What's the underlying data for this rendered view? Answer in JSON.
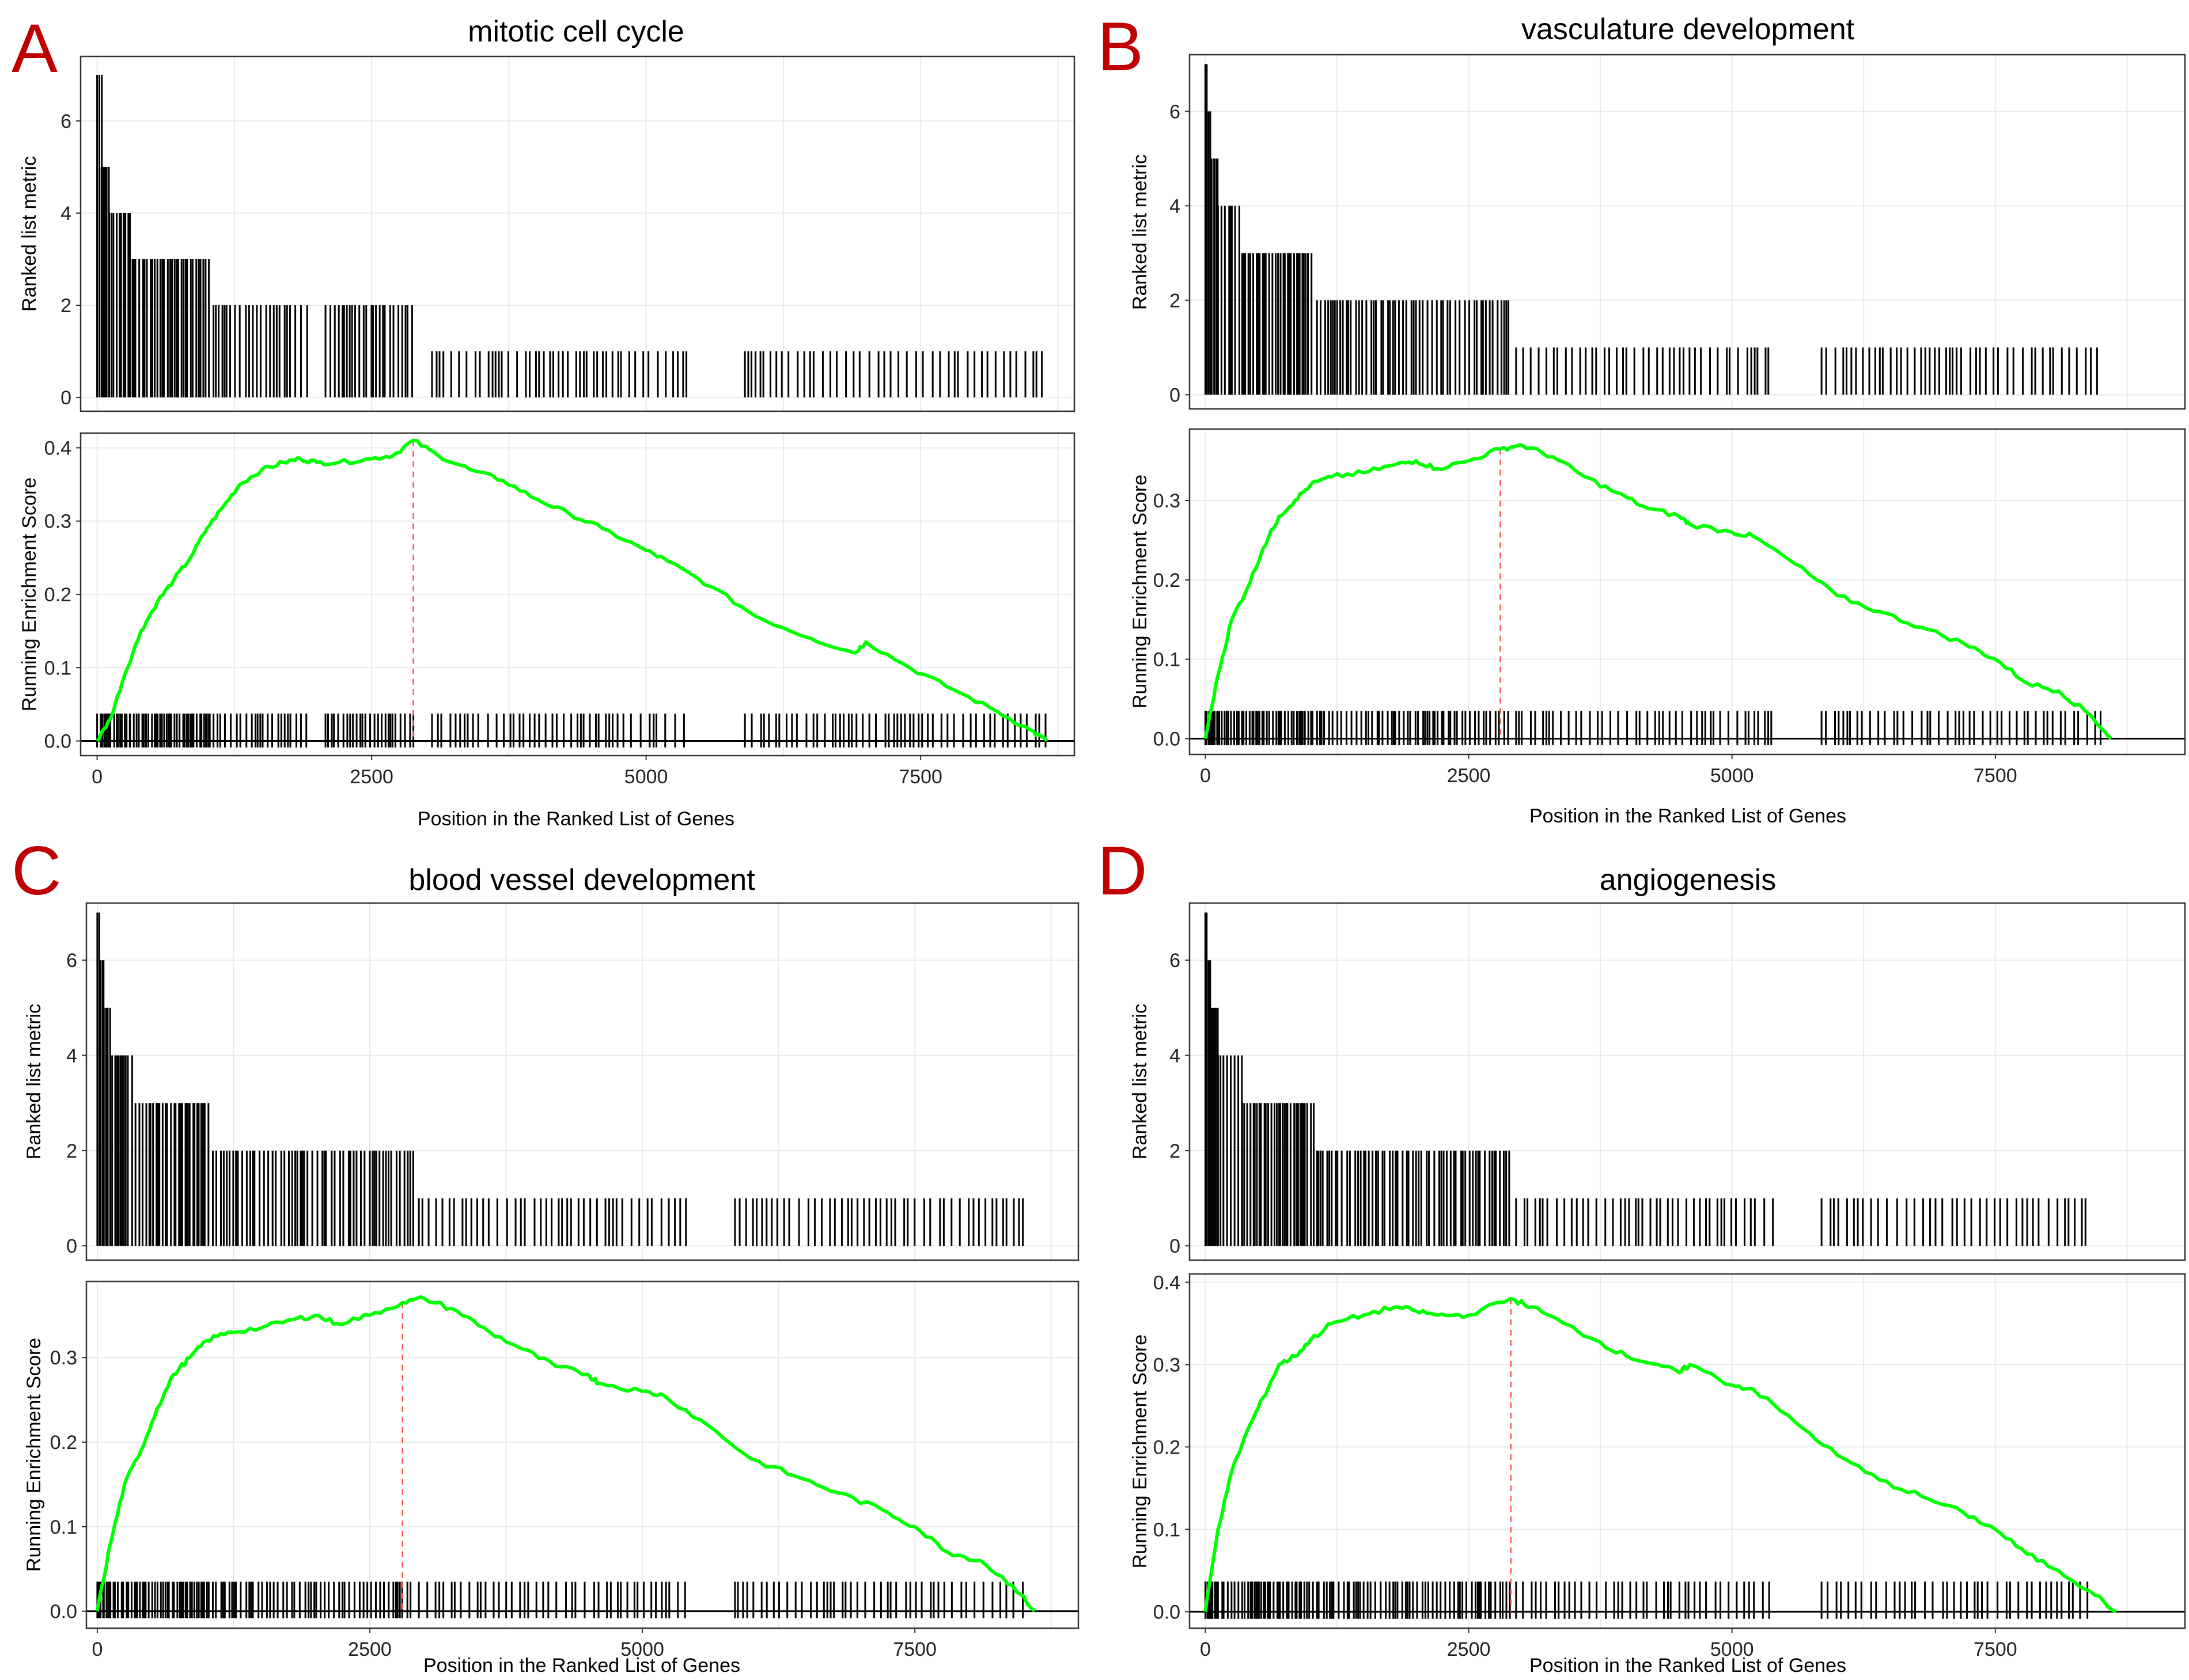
{
  "figure": {
    "xaxis_label": "Position in the Ranked List of Genes",
    "top_ylabel": "Ranked list metric",
    "bottom_ylabel": "Running Enrichment Score",
    "colors": {
      "curve": "#00ff00",
      "peak_line": "#ff5555",
      "bars": "#000000",
      "letters": "#c00000"
    }
  },
  "chart_data": [
    {
      "type": "line",
      "panel": "A",
      "title": "mitotic cell cycle",
      "xlabel": "Position in the Ranked List of Genes",
      "xlim": [
        -150,
        8900
      ],
      "xticks": [
        0,
        2500,
        5000,
        7500
      ],
      "metric": {
        "ylabel": "Ranked list metric",
        "ylim": [
          -0.3,
          7.4
        ],
        "yticks": [
          0,
          2,
          4,
          6
        ],
        "segments": [
          {
            "from": 0,
            "to": 50,
            "value": 7,
            "step": 20
          },
          {
            "from": 40,
            "to": 110,
            "value": 5,
            "step": 14
          },
          {
            "from": 110,
            "to": 300,
            "value": 4,
            "step": 22
          },
          {
            "from": 300,
            "to": 1030,
            "value": 3,
            "step": 22
          },
          {
            "from": 1060,
            "to": 1920,
            "value": 2,
            "step": 35
          },
          {
            "from": 2080,
            "to": 2900,
            "value": 2,
            "step": 30
          },
          {
            "from": 3050,
            "to": 5400,
            "value": 1,
            "step": 55
          },
          {
            "from": 5900,
            "to": 8650,
            "value": 1,
            "step": 55
          }
        ]
      },
      "enrichment": {
        "ylabel": "Running Enrichment Score",
        "ylim": [
          -0.02,
          0.42
        ],
        "yticks": [
          0.0,
          0.1,
          0.2,
          0.3,
          0.4
        ],
        "ytick_labels": [
          "0.0",
          "0.1",
          "0.2",
          "0.3",
          "0.4"
        ],
        "peak_x": 2880,
        "x": [
          0,
          120,
          250,
          400,
          550,
          700,
          850,
          1000,
          1150,
          1300,
          1500,
          1700,
          1850,
          2000,
          2200,
          2500,
          2700,
          2880,
          3100,
          3400,
          3700,
          4000,
          4300,
          4600,
          5000,
          5200,
          5600,
          6000,
          6500,
          6900,
          7000,
          7400,
          7800,
          8200,
          8500,
          8650
        ],
        "y": [
          0.0,
          0.03,
          0.09,
          0.15,
          0.19,
          0.22,
          0.25,
          0.29,
          0.32,
          0.35,
          0.37,
          0.38,
          0.385,
          0.38,
          0.38,
          0.385,
          0.39,
          0.41,
          0.39,
          0.37,
          0.355,
          0.33,
          0.31,
          0.29,
          0.26,
          0.245,
          0.21,
          0.17,
          0.14,
          0.12,
          0.135,
          0.1,
          0.07,
          0.04,
          0.015,
          0.0
        ]
      }
    },
    {
      "type": "line",
      "panel": "B",
      "title": "vasculature development",
      "xlabel": "Position in the Ranked List of Genes",
      "xlim": [
        -150,
        9300
      ],
      "xticks": [
        0,
        2500,
        5000,
        7500
      ],
      "metric": {
        "ylabel": "Ranked list metric",
        "ylim": [
          -0.3,
          7.2
        ],
        "yticks": [
          0,
          2,
          4,
          6
        ],
        "segments": [
          {
            "from": 0,
            "to": 30,
            "value": 7,
            "step": 15
          },
          {
            "from": 30,
            "to": 60,
            "value": 6,
            "step": 15
          },
          {
            "from": 60,
            "to": 120,
            "value": 5,
            "step": 15
          },
          {
            "from": 120,
            "to": 350,
            "value": 4,
            "step": 25
          },
          {
            "from": 350,
            "to": 1030,
            "value": 3,
            "step": 22
          },
          {
            "from": 1060,
            "to": 2900,
            "value": 2,
            "step": 32
          },
          {
            "from": 2950,
            "to": 5400,
            "value": 1,
            "step": 55
          },
          {
            "from": 5850,
            "to": 8500,
            "value": 1,
            "step": 55
          }
        ]
      },
      "enrichment": {
        "ylabel": "Running Enrichment Score",
        "ylim": [
          -0.02,
          0.39
        ],
        "yticks": [
          0.0,
          0.1,
          0.2,
          0.3
        ],
        "ytick_labels": [
          "0.0",
          "0.1",
          "0.2",
          "0.3"
        ],
        "peak_x": 2800,
        "x": [
          0,
          120,
          250,
          400,
          550,
          700,
          850,
          1000,
          1200,
          1500,
          1800,
          2000,
          2200,
          2500,
          2800,
          3000,
          3300,
          3600,
          3900,
          4200,
          4500,
          4600,
          5000,
          5200,
          5600,
          6000,
          6400,
          6800,
          7200,
          7500,
          7800,
          8100,
          8400,
          8600
        ],
        "y": [
          0.0,
          0.08,
          0.15,
          0.19,
          0.24,
          0.28,
          0.3,
          0.32,
          0.33,
          0.335,
          0.345,
          0.35,
          0.34,
          0.35,
          0.365,
          0.37,
          0.355,
          0.33,
          0.31,
          0.29,
          0.28,
          0.27,
          0.26,
          0.255,
          0.22,
          0.18,
          0.16,
          0.14,
          0.12,
          0.1,
          0.07,
          0.06,
          0.03,
          0.0
        ]
      }
    },
    {
      "type": "line",
      "panel": "C",
      "title": "blood vessel development",
      "xlabel": "Position in the Ranked List of Genes",
      "xlim": [
        -100,
        9000
      ],
      "xticks": [
        0,
        2500,
        5000,
        7500
      ],
      "metric": {
        "ylabel": "Ranked list metric",
        "ylim": [
          -0.3,
          7.2
        ],
        "yticks": [
          0,
          2,
          4,
          6
        ],
        "segments": [
          {
            "from": 0,
            "to": 30,
            "value": 7,
            "step": 15
          },
          {
            "from": 30,
            "to": 60,
            "value": 6,
            "step": 15
          },
          {
            "from": 60,
            "to": 120,
            "value": 5,
            "step": 15
          },
          {
            "from": 120,
            "to": 350,
            "value": 4,
            "step": 25
          },
          {
            "from": 350,
            "to": 1030,
            "value": 3,
            "step": 22
          },
          {
            "from": 1060,
            "to": 2900,
            "value": 2,
            "step": 32
          },
          {
            "from": 2950,
            "to": 5400,
            "value": 1,
            "step": 55
          },
          {
            "from": 5850,
            "to": 8500,
            "value": 1,
            "step": 55
          }
        ]
      },
      "enrichment": {
        "ylabel": "Running Enrichment Score",
        "ylim": [
          -0.02,
          0.39
        ],
        "yticks": [
          0.0,
          0.1,
          0.2,
          0.3
        ],
        "ytick_labels": [
          "0.0",
          "0.1",
          "0.2",
          "0.3"
        ],
        "peak_x": 2800,
        "x": [
          0,
          120,
          250,
          400,
          550,
          700,
          850,
          1000,
          1200,
          1500,
          1800,
          2000,
          2200,
          2500,
          2800,
          3000,
          3300,
          3600,
          3900,
          4200,
          4500,
          4600,
          5000,
          5200,
          5600,
          6000,
          6400,
          6800,
          7200,
          7500,
          7800,
          8100,
          8400,
          8600
        ],
        "y": [
          0.0,
          0.08,
          0.15,
          0.19,
          0.24,
          0.28,
          0.3,
          0.32,
          0.33,
          0.335,
          0.345,
          0.35,
          0.34,
          0.35,
          0.365,
          0.37,
          0.355,
          0.33,
          0.31,
          0.29,
          0.28,
          0.27,
          0.26,
          0.255,
          0.22,
          0.18,
          0.16,
          0.14,
          0.12,
          0.1,
          0.07,
          0.06,
          0.03,
          0.0
        ]
      }
    },
    {
      "type": "line",
      "panel": "D",
      "title": "angiogenesis",
      "xlabel": "Position in the Ranked List of Genes",
      "xlim": [
        -150,
        9300
      ],
      "xticks": [
        0,
        2500,
        5000,
        7500
      ],
      "metric": {
        "ylabel": "Ranked list metric",
        "ylim": [
          -0.3,
          7.2
        ],
        "yticks": [
          0,
          2,
          4,
          6
        ],
        "segments": [
          {
            "from": 0,
            "to": 30,
            "value": 7,
            "step": 15
          },
          {
            "from": 30,
            "to": 60,
            "value": 6,
            "step": 15
          },
          {
            "from": 60,
            "to": 120,
            "value": 5,
            "step": 15
          },
          {
            "from": 120,
            "to": 350,
            "value": 4,
            "step": 25
          },
          {
            "from": 350,
            "to": 1030,
            "value": 3,
            "step": 22
          },
          {
            "from": 1060,
            "to": 2900,
            "value": 2,
            "step": 32
          },
          {
            "from": 2950,
            "to": 5400,
            "value": 1,
            "step": 55
          },
          {
            "from": 5850,
            "to": 8400,
            "value": 1,
            "step": 60
          }
        ]
      },
      "enrichment": {
        "ylabel": "Running Enrichment Score",
        "ylim": [
          -0.02,
          0.41
        ],
        "yticks": [
          0.0,
          0.1,
          0.2,
          0.3,
          0.4
        ],
        "ytick_labels": [
          "0.0",
          "0.1",
          "0.2",
          "0.3",
          "0.4"
        ],
        "peak_x": 2900,
        "x": [
          0,
          120,
          250,
          400,
          550,
          700,
          850,
          1000,
          1200,
          1500,
          1800,
          2000,
          2200,
          2500,
          2900,
          3100,
          3400,
          3700,
          4000,
          4300,
          4500,
          4600,
          5000,
          5200,
          5600,
          6000,
          6400,
          6800,
          7200,
          7500,
          7800,
          8100,
          8400,
          8650
        ],
        "y": [
          0.0,
          0.1,
          0.17,
          0.22,
          0.26,
          0.3,
          0.31,
          0.33,
          0.35,
          0.36,
          0.37,
          0.365,
          0.36,
          0.36,
          0.38,
          0.37,
          0.35,
          0.33,
          0.31,
          0.3,
          0.29,
          0.3,
          0.275,
          0.27,
          0.23,
          0.19,
          0.16,
          0.14,
          0.12,
          0.1,
          0.07,
          0.05,
          0.025,
          0.0
        ]
      }
    }
  ]
}
